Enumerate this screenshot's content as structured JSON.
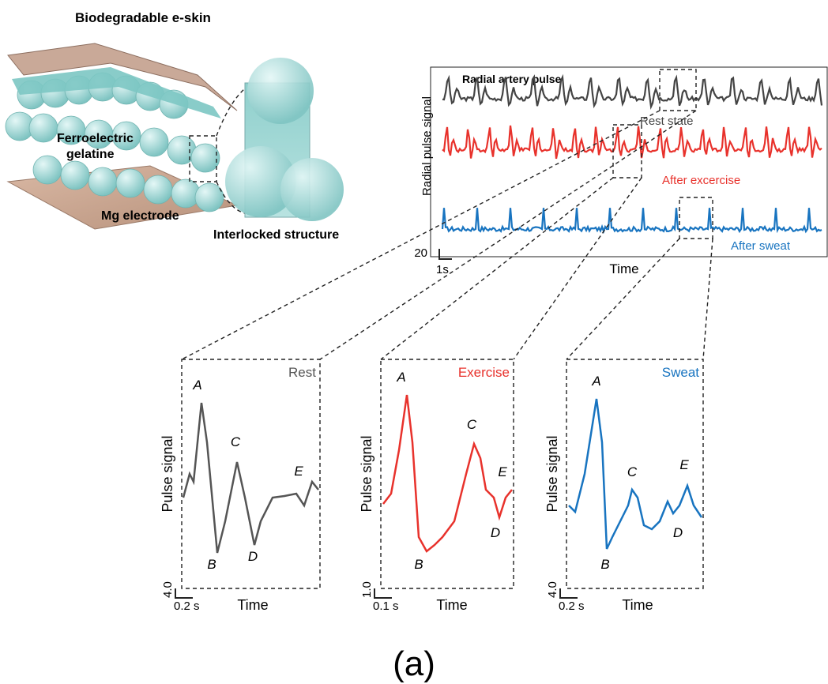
{
  "illustration": {
    "title": "Biodegradable e-skin",
    "layer_label_lines": [
      "Ferroelectric",
      "gelatine"
    ],
    "electrode_label": "Mg electrode",
    "inset_label": "Interlocked structure"
  },
  "overview": {
    "title": "Radial artery pulse",
    "y_label": "Radial pulse signal",
    "x_label": "Time",
    "scale_y": "20",
    "scale_x": "1s",
    "traces": [
      {
        "label": "Rest state",
        "color": "#444444"
      },
      {
        "label": "After excercise",
        "color": "#e8322c"
      },
      {
        "label": "After sweat",
        "color": "#1874c0"
      }
    ]
  },
  "panels": [
    {
      "title": "Rest",
      "color": "#555555",
      "y_label": "Pulse signal",
      "x_label": "Time",
      "scale_y": "4.0",
      "scale_x": "0.2 s",
      "points": [
        "A",
        "B",
        "C",
        "D",
        "E"
      ]
    },
    {
      "title": "Exercise",
      "color": "#e8322c",
      "y_label": "Pulse signal",
      "x_label": "Time",
      "scale_y": "1.0",
      "scale_x": "0.1 s",
      "points": [
        "A",
        "B",
        "C",
        "D",
        "E"
      ]
    },
    {
      "title": "Sweat",
      "color": "#1874c0",
      "y_label": "Pulse signal",
      "x_label": "Time",
      "scale_y": "4.0",
      "scale_x": "0.2 s",
      "points": [
        "A",
        "B",
        "C",
        "D",
        "E"
      ]
    }
  ],
  "caption": "(a)"
}
